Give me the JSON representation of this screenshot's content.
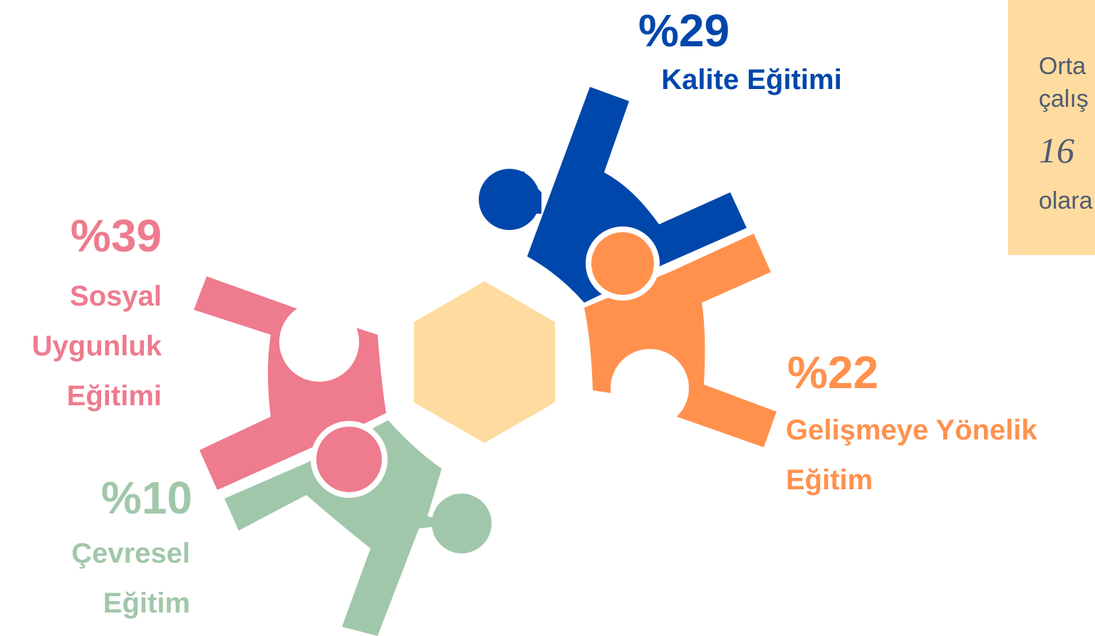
{
  "groups": [
    {
      "percent": "%29",
      "lines": [
        "Kalite Eğitimi"
      ]
    },
    {
      "percent": "%39",
      "lines": [
        "Sosyal",
        "Uygunluk",
        "Eğitimi"
      ]
    },
    {
      "percent": "%10",
      "lines": [
        "Çevresel",
        "Eğitim"
      ]
    },
    {
      "percent": "%22",
      "lines": [
        "Gelişmeye Yönelik",
        "Eğitim"
      ]
    }
  ],
  "note": {
    "lines": [
      "Orta",
      "çalış",
      "16",
      "olara"
    ]
  }
}
